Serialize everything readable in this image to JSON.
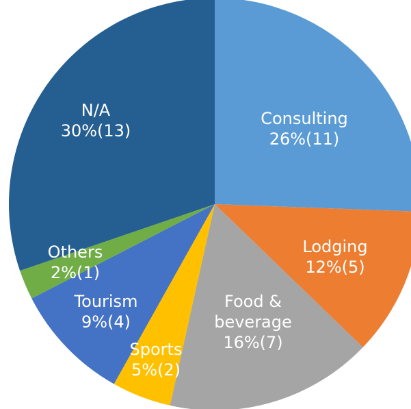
{
  "chart_data": {
    "type": "pie",
    "categories": [
      "Consulting",
      "Lodging",
      "Food & beverage",
      "Sports",
      "Tourism",
      "Others",
      "N/A"
    ],
    "values": [
      11,
      5,
      7,
      2,
      4,
      1,
      13
    ],
    "value_labels": [
      "26%(11)",
      "12%(5)",
      "16%(7)",
      "5%(2)",
      "9%(4)",
      "2%(1)",
      "30%(13)"
    ],
    "colors": [
      "#5b9bd5",
      "#ed7d31",
      "#a5a5a5",
      "#ffc000",
      "#4472c4",
      "#70ad47",
      "#255e91"
    ]
  }
}
